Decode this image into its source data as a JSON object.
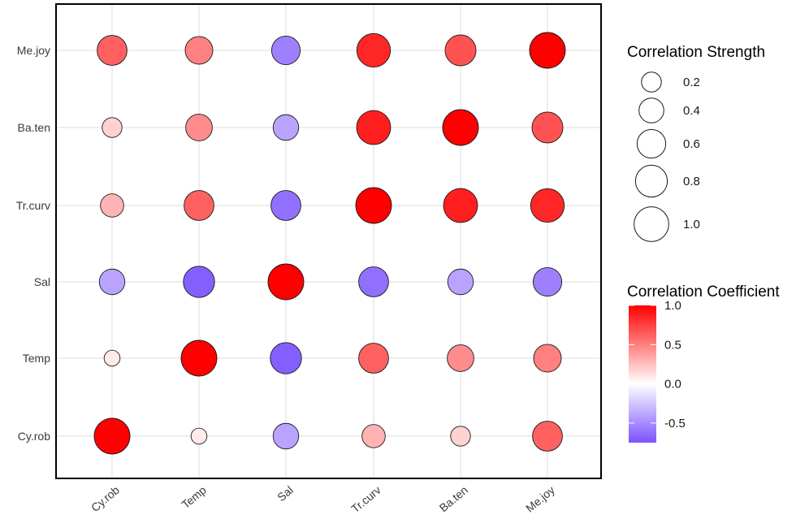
{
  "chart_data": {
    "type": "scatter",
    "subtype": "correlation-bubble-matrix",
    "x_categories": [
      "Cy.rob",
      "Temp",
      "Sal",
      "Tr.curv",
      "Ba.ten",
      "Me.joy"
    ],
    "y_categories": [
      "Cy.rob",
      "Temp",
      "Sal",
      "Tr.curv",
      "Ba.ten",
      "Me.joy"
    ],
    "title": "",
    "xlabel": "",
    "ylabel": "",
    "grid": true,
    "matrix": [
      {
        "y": "Me.joy",
        "values": [
          0.62,
          0.5,
          -0.55,
          0.85,
          0.68,
          1.0
        ]
      },
      {
        "y": "Ba.ten",
        "values": [
          0.18,
          0.45,
          -0.4,
          0.88,
          1.0,
          0.68
        ]
      },
      {
        "y": "Tr.curv",
        "values": [
          0.3,
          0.62,
          -0.62,
          1.0,
          0.88,
          0.85
        ]
      },
      {
        "y": "Sal",
        "values": [
          -0.4,
          -0.7,
          1.0,
          -0.62,
          -0.4,
          -0.55
        ]
      },
      {
        "y": "Temp",
        "values": [
          0.08,
          1.0,
          -0.7,
          0.62,
          0.45,
          0.5
        ]
      },
      {
        "y": "Cy.rob",
        "values": [
          1.0,
          0.08,
          -0.4,
          0.3,
          0.18,
          0.62
        ]
      }
    ],
    "size_legend": {
      "title": "Correlation Strength",
      "breaks": [
        {
          "value": 0.2,
          "label": "0.2"
        },
        {
          "value": 0.4,
          "label": "0.4"
        },
        {
          "value": 0.6,
          "label": "0.6"
        },
        {
          "value": 0.8,
          "label": "0.8"
        },
        {
          "value": 1.0,
          "label": "1.0"
        }
      ],
      "placement": "right"
    },
    "color_legend": {
      "title": "Correlation Coefficient",
      "range": [
        -0.75,
        1.0
      ],
      "ticks": [
        {
          "value": 1.0,
          "label": "1.0"
        },
        {
          "value": 0.5,
          "label": "0.5"
        },
        {
          "value": 0.0,
          "label": "0.0"
        },
        {
          "value": -0.5,
          "label": "-0.5"
        }
      ],
      "low_color": "#7b52ff",
      "mid_color": "#ffffff",
      "high_color": "#ff0000",
      "placement": "right"
    }
  }
}
